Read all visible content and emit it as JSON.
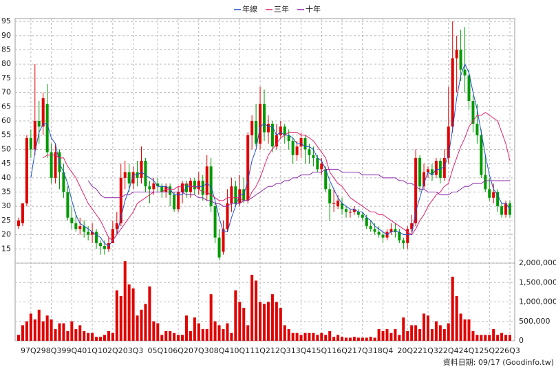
{
  "chart_data": {
    "type": "candlestick",
    "legend": "top",
    "grid": true,
    "footer": "資料日期: 09/17 (Goodinfo.tw)",
    "up_color": "#e00000",
    "down_color": "#009a00",
    "categories": [
      null,
      null,
      null,
      "97Q2",
      null,
      null,
      null,
      null,
      "98Q3",
      null,
      null,
      null,
      null,
      "99Q4",
      null,
      null,
      null,
      null,
      "01Q1",
      null,
      null,
      null,
      null,
      "02Q2",
      null,
      null,
      null,
      null,
      "03Q3",
      null,
      null,
      null,
      null,
      null,
      "05Q1",
      null,
      null,
      null,
      null,
      "06Q2",
      null,
      null,
      null,
      null,
      "07Q3",
      null,
      null,
      null,
      null,
      "08Q4",
      null,
      null,
      null,
      null,
      "10Q1",
      null,
      null,
      null,
      null,
      "11Q2",
      null,
      null,
      null,
      null,
      "12Q3",
      null,
      null,
      null,
      null,
      "13Q4",
      null,
      null,
      null,
      null,
      "15Q1",
      null,
      null,
      null,
      null,
      "16Q2",
      null,
      null,
      null,
      null,
      "17Q3",
      null,
      null,
      null,
      null,
      "18Q4",
      null,
      null,
      null,
      null,
      null,
      "20Q2",
      null,
      null,
      null,
      null,
      "21Q3",
      null,
      null,
      null,
      null,
      "22Q4",
      null,
      null,
      null,
      null,
      "24Q1",
      null,
      null,
      null,
      null,
      "25Q2",
      null,
      null,
      null,
      null,
      "26Q3"
    ],
    "ylim": [
      10,
      96
    ],
    "yticks": [
      15,
      20,
      25,
      30,
      35,
      40,
      45,
      50,
      55,
      60,
      65,
      70,
      75,
      80,
      85,
      90,
      95
    ],
    "open": [
      23,
      24,
      31,
      54,
      50,
      60,
      58,
      66,
      49,
      40,
      49,
      42,
      35,
      26,
      24,
      22,
      23,
      21,
      20,
      21,
      17,
      16,
      15,
      17,
      22,
      24,
      40,
      42,
      38,
      42,
      40,
      46,
      37,
      36,
      38,
      37,
      35,
      37,
      34,
      29,
      35,
      38,
      35,
      39,
      36,
      39,
      34,
      44,
      30,
      19,
      14,
      22,
      31,
      37,
      31,
      36,
      32,
      55,
      60,
      52,
      66,
      56,
      59,
      51,
      55,
      58,
      55,
      53,
      48,
      51,
      54,
      50,
      48,
      47,
      43,
      43,
      36,
      31,
      30,
      31,
      29,
      28,
      28,
      28,
      27,
      26,
      23,
      22,
      21,
      20,
      19,
      21,
      22,
      21,
      18,
      17,
      22,
      24,
      47,
      37,
      42,
      43,
      41,
      46,
      40,
      47,
      58,
      82,
      85,
      78,
      76,
      67,
      59,
      55,
      41,
      36,
      33,
      35,
      30,
      27,
      31
    ],
    "high": [
      26,
      31,
      55,
      57,
      80,
      67,
      70,
      73,
      52,
      52,
      50,
      45,
      37,
      30,
      27,
      26,
      25,
      23,
      24,
      22,
      18,
      18,
      19,
      25,
      28,
      45,
      46,
      45,
      44,
      46,
      51,
      47,
      39,
      40,
      40,
      38,
      38,
      38,
      35,
      37,
      39,
      39,
      40,
      40,
      42,
      41,
      48,
      47,
      31,
      22,
      25,
      36,
      40,
      39,
      41,
      40,
      56,
      62,
      66,
      72,
      71,
      62,
      60,
      59,
      60,
      59,
      57,
      54,
      53,
      56,
      55,
      52,
      51,
      48,
      47,
      44,
      38,
      36,
      34,
      33,
      30,
      29,
      30,
      29,
      28,
      27,
      25,
      24,
      23,
      21,
      22,
      24,
      24,
      22,
      19,
      23,
      27,
      50,
      48,
      45,
      44,
      45,
      47,
      47,
      50,
      72,
      95,
      90,
      92,
      93,
      78,
      69,
      66,
      57,
      48,
      40,
      38,
      36,
      31,
      32,
      32
    ],
    "low": [
      22,
      23,
      30,
      47,
      48,
      52,
      55,
      47,
      38,
      38,
      36,
      33,
      25,
      22,
      21,
      20,
      19,
      18,
      17,
      15,
      13,
      13,
      14,
      17,
      20,
      23,
      36,
      35,
      36,
      37,
      38,
      35,
      31,
      34,
      35,
      33,
      33,
      30,
      28,
      28,
      31,
      33,
      33,
      34,
      34,
      32,
      32,
      28,
      17,
      11,
      13,
      21,
      28,
      30,
      30,
      31,
      31,
      50,
      51,
      50,
      53,
      52,
      49,
      50,
      54,
      52,
      50,
      45,
      46,
      47,
      45,
      45,
      44,
      42,
      41,
      35,
      25,
      28,
      29,
      27,
      26,
      26,
      27,
      26,
      25,
      22,
      21,
      20,
      19,
      17,
      18,
      20,
      19,
      17,
      15,
      15,
      21,
      23,
      35,
      36,
      40,
      39,
      40,
      38,
      39,
      45,
      56,
      70,
      74,
      70,
      64,
      56,
      52,
      40,
      35,
      32,
      31,
      28,
      26,
      26,
      26
    ],
    "close": [
      25,
      31,
      54,
      50,
      60,
      58,
      68,
      49,
      40,
      49,
      42,
      35,
      26,
      24,
      22,
      23,
      21,
      20,
      21,
      17,
      16,
      15,
      17,
      22,
      24,
      40,
      42,
      38,
      42,
      40,
      46,
      37,
      36,
      38,
      37,
      35,
      37,
      34,
      29,
      35,
      38,
      35,
      39,
      36,
      39,
      34,
      44,
      30,
      19,
      12,
      22,
      31,
      37,
      31,
      36,
      32,
      55,
      60,
      52,
      66,
      56,
      59,
      51,
      55,
      58,
      55,
      53,
      48,
      51,
      54,
      50,
      48,
      47,
      43,
      45,
      36,
      31,
      31,
      32,
      29,
      28,
      28,
      29,
      27,
      26,
      23,
      22,
      21,
      20,
      19,
      21,
      22,
      21,
      18,
      17,
      22,
      24,
      47,
      37,
      42,
      43,
      41,
      46,
      40,
      47,
      58,
      82,
      85,
      78,
      76,
      67,
      59,
      55,
      41,
      36,
      33,
      35,
      30,
      27,
      31,
      27
    ],
    "series": [
      {
        "name": "年線",
        "color": "#1f4fd0",
        "values": [
          null,
          null,
          null,
          40,
          49,
          56,
          59,
          59,
          54,
          52,
          45,
          42,
          38,
          32,
          27,
          24,
          23,
          22,
          21,
          20,
          19,
          17,
          16,
          18,
          20,
          26,
          32,
          36,
          41,
          41,
          42,
          41,
          40,
          39,
          37,
          37,
          37,
          36,
          34,
          34,
          34,
          37,
          37,
          37,
          37,
          37,
          38,
          37,
          32,
          26,
          21,
          21,
          26,
          30,
          34,
          34,
          39,
          46,
          50,
          58,
          59,
          58,
          58,
          55,
          56,
          55,
          55,
          54,
          52,
          52,
          51,
          51,
          50,
          47,
          46,
          43,
          39,
          36,
          33,
          31,
          30,
          29,
          29,
          28,
          28,
          26,
          25,
          23,
          22,
          21,
          20,
          21,
          21,
          21,
          20,
          20,
          20,
          28,
          33,
          38,
          42,
          41,
          43,
          43,
          44,
          48,
          57,
          68,
          76,
          80,
          77,
          70,
          64,
          56,
          48,
          41,
          36,
          34,
          31,
          31,
          29
        ]
      },
      {
        "name": "三年",
        "color": "#e0206e",
        "values": [
          null,
          null,
          null,
          null,
          null,
          null,
          47,
          48,
          48,
          48,
          47,
          47,
          44,
          42,
          40,
          37,
          34,
          31,
          29,
          27,
          25,
          22,
          19,
          18,
          20,
          22,
          24,
          26,
          28,
          31,
          32,
          33,
          34,
          35,
          35,
          35,
          36,
          36,
          36,
          37,
          37,
          38,
          37,
          37,
          36,
          35,
          35,
          34,
          33,
          32,
          32,
          33,
          33,
          33,
          33,
          32,
          32,
          35,
          37,
          40,
          44,
          48,
          50,
          52,
          54,
          55,
          56,
          56,
          56,
          55,
          55,
          54,
          53,
          51,
          49,
          47,
          42,
          40,
          38,
          37,
          35,
          33,
          32,
          31,
          30,
          29,
          28,
          28,
          27,
          27,
          26,
          25,
          24,
          23,
          22,
          21,
          20,
          22,
          25,
          27,
          30,
          32,
          34,
          35,
          37,
          38,
          43,
          47,
          51,
          54,
          58,
          60,
          62,
          62,
          63,
          62,
          61,
          60,
          56,
          52,
          46
        ]
      },
      {
        "name": "十年",
        "color": "#8a2aa8",
        "values": [
          null,
          null,
          null,
          null,
          null,
          null,
          null,
          null,
          null,
          null,
          null,
          null,
          null,
          null,
          null,
          null,
          null,
          39,
          37,
          36,
          34,
          33,
          33,
          33,
          33,
          33,
          34,
          34,
          35,
          35,
          35,
          35,
          35,
          35,
          35,
          35,
          35,
          35,
          35,
          35,
          35,
          34,
          34,
          34,
          33,
          33,
          32,
          32,
          31,
          31,
          30,
          30,
          31,
          31,
          31,
          32,
          32,
          33,
          34,
          35,
          36,
          37,
          37,
          38,
          38,
          39,
          39,
          40,
          40,
          41,
          41,
          41,
          42,
          42,
          42,
          43,
          43,
          43,
          43,
          42,
          42,
          42,
          42,
          42,
          41,
          41,
          41,
          41,
          41,
          40,
          40,
          40,
          40,
          39,
          39,
          38,
          38,
          37,
          36,
          36,
          35,
          35,
          35,
          34,
          34,
          34,
          35,
          35,
          36,
          37,
          37,
          38,
          38,
          38,
          39,
          39,
          39,
          39,
          39,
          39,
          39
        ]
      }
    ],
    "volume": {
      "color": "#e00000",
      "ylim": [
        0,
        2000000
      ],
      "yticks": [
        0,
        {
          "value": 500000,
          "label": "500,000"
        },
        {
          "value": 1000000,
          "label": "1,000,000"
        },
        {
          "value": 1500000,
          "label": "1,500,000"
        },
        {
          "value": 2000000,
          "label": "2,000,000"
        }
      ],
      "values": [
        150000,
        400000,
        500000,
        700000,
        550000,
        800000,
        500000,
        650000,
        550000,
        300000,
        450000,
        450000,
        250000,
        500000,
        300000,
        400000,
        250000,
        200000,
        200000,
        100000,
        100000,
        150000,
        250000,
        200000,
        1300000,
        1150000,
        2050000,
        1450000,
        1350000,
        650000,
        800000,
        950000,
        1400000,
        500000,
        450000,
        150000,
        250000,
        250000,
        200000,
        150000,
        150000,
        650000,
        250000,
        600000,
        450000,
        300000,
        300000,
        1200000,
        500000,
        400000,
        300000,
        450000,
        200000,
        1300000,
        1000000,
        850000,
        400000,
        1700000,
        1550000,
        1000000,
        950000,
        1000000,
        1200000,
        1000000,
        850000,
        400000,
        300000,
        200000,
        200000,
        150000,
        200000,
        200000,
        200000,
        150000,
        200000,
        150000,
        250000,
        100000,
        150000,
        100000,
        80000,
        80000,
        100000,
        80000,
        80000,
        80000,
        100000,
        80000,
        300000,
        250000,
        300000,
        200000,
        300000,
        150000,
        600000,
        250000,
        400000,
        400000,
        300000,
        700000,
        650000,
        300000,
        500000,
        400000,
        300000,
        450000,
        1650000,
        1150000,
        700000,
        550000,
        550000,
        250000,
        150000,
        150000,
        150000,
        150000,
        300000,
        150000,
        200000,
        150000,
        150000
      ]
    }
  }
}
